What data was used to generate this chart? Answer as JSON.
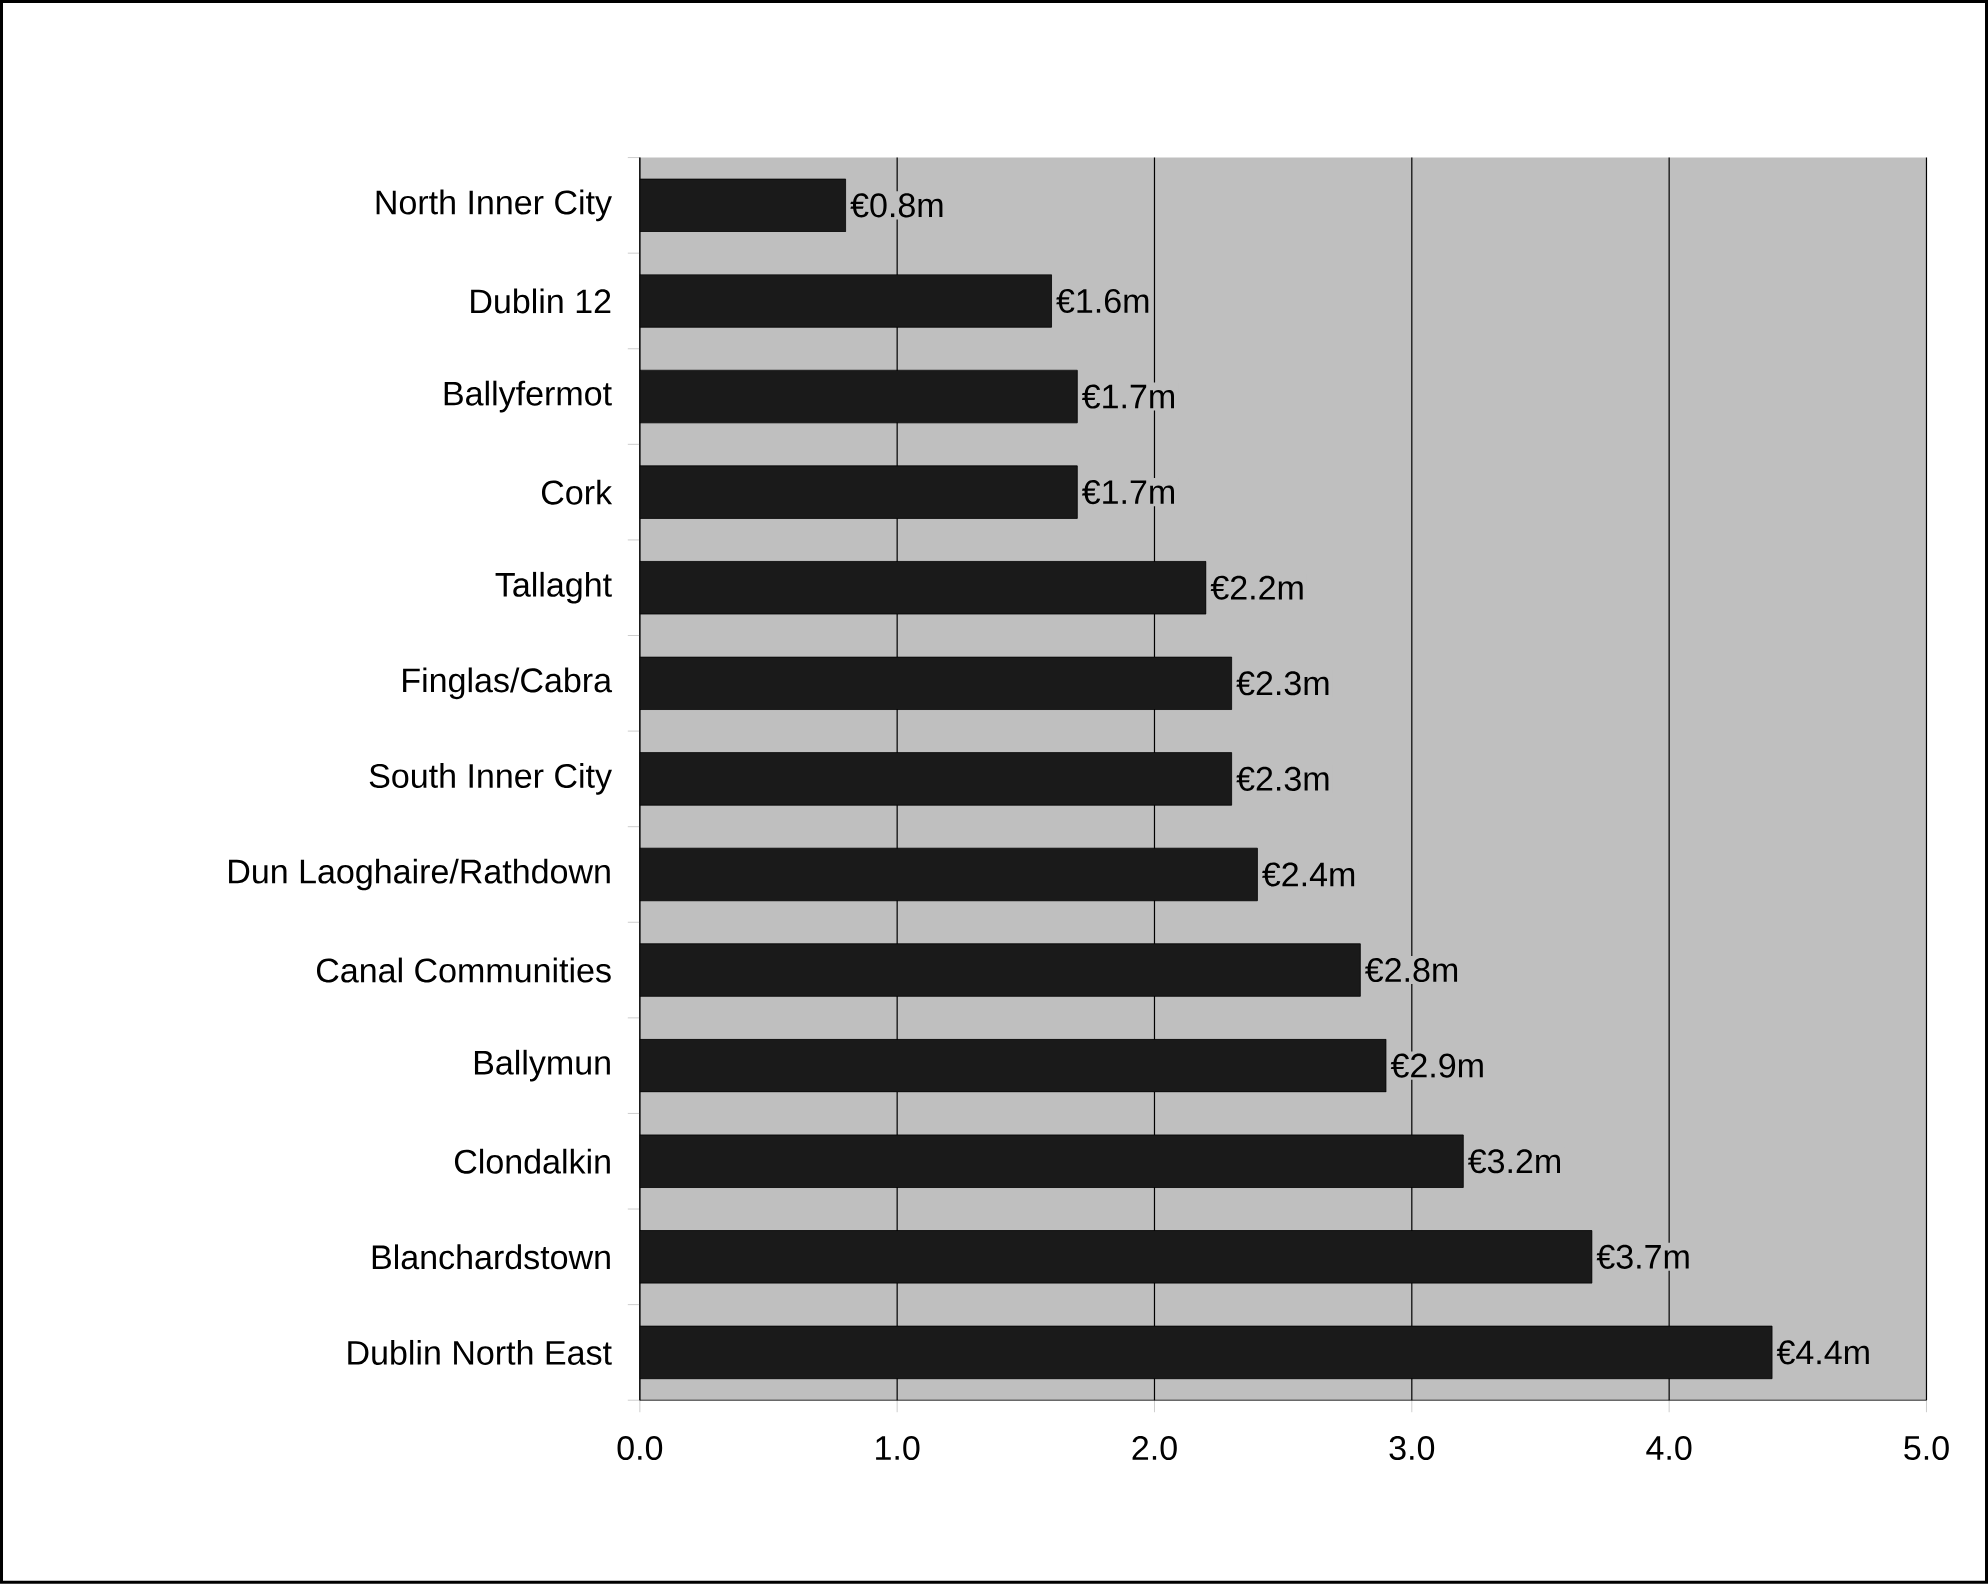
{
  "chart_data": {
    "type": "bar",
    "orientation": "horizontal",
    "color": "#1a1a1a",
    "categories": [
      "North Inner City",
      "Dublin 12",
      "Ballyfermot",
      "Cork",
      "Tallaght",
      "Finglas/Cabra",
      "South Inner City",
      "Dun Laoghaire/Rathdown",
      "Canal Communities",
      "Ballymun",
      "Clondalkin",
      "Blanchardstown",
      "Dublin North East"
    ],
    "values": [
      0.8,
      1.6,
      1.7,
      1.7,
      2.2,
      2.3,
      2.3,
      2.4,
      2.8,
      2.9,
      3.2,
      3.7,
      4.4
    ],
    "value_labels": [
      "€0.8m",
      "€1.6m",
      "€1.7m",
      "€1.7m",
      "€2.2m",
      "€2.3m",
      "€2.3m",
      "€2.4m",
      "€2.8m",
      "€2.9m",
      "€3.2m",
      "€3.7m",
      "€4.4m"
    ],
    "xlim": [
      0,
      5
    ],
    "xticks": [
      {
        "value": 0,
        "label": "0.0"
      },
      {
        "value": 1,
        "label": "1.0"
      },
      {
        "value": 2,
        "label": "2.0"
      },
      {
        "value": 3,
        "label": "3.0"
      },
      {
        "value": 4,
        "label": "4.0"
      },
      {
        "value": 5,
        "label": "5.0"
      }
    ],
    "grid": "x"
  }
}
